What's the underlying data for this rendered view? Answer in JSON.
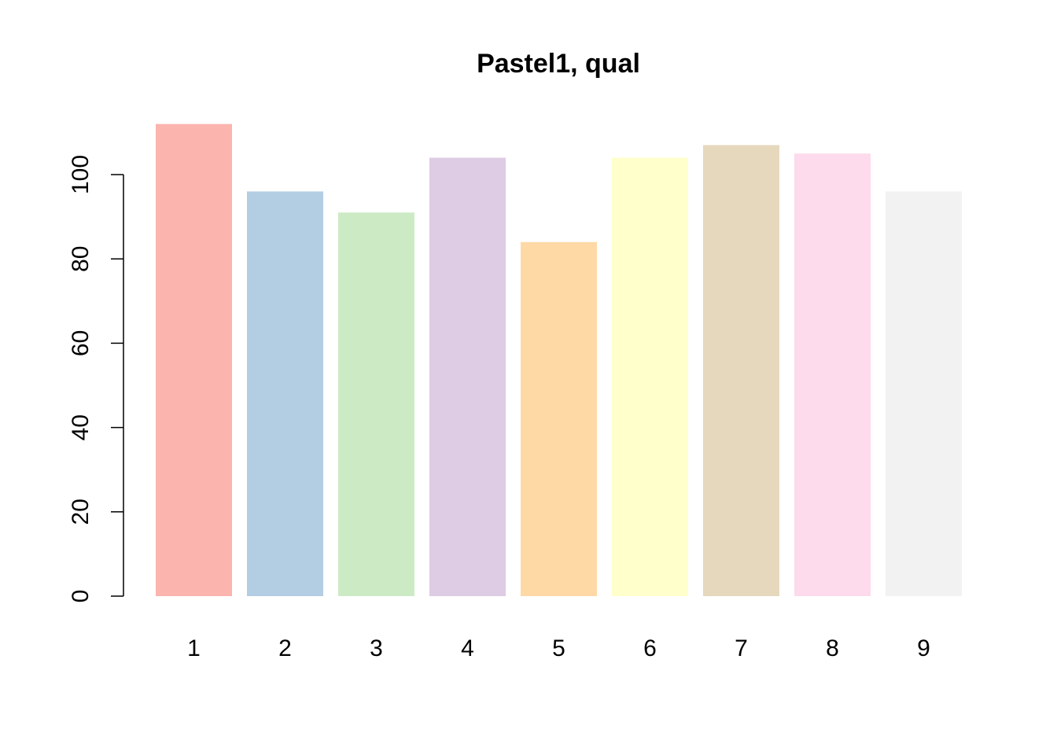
{
  "chart_data": {
    "type": "bar",
    "title": "Pastel1, qual",
    "xlabel": "",
    "ylabel": "",
    "categories": [
      "1",
      "2",
      "3",
      "4",
      "5",
      "6",
      "7",
      "8",
      "9"
    ],
    "values": [
      112,
      96,
      91,
      104,
      84,
      104,
      107,
      105,
      96
    ],
    "colors": [
      "#FBB4AE",
      "#B3CDE3",
      "#CCEBC5",
      "#DECBE4",
      "#FED9A6",
      "#FFFFCC",
      "#E5D8BD",
      "#FDDAEC",
      "#F2F2F2"
    ],
    "ylim": [
      0,
      112
    ],
    "yticks": [
      0,
      20,
      40,
      60,
      80,
      100
    ],
    "grid": false,
    "legend": "none"
  }
}
